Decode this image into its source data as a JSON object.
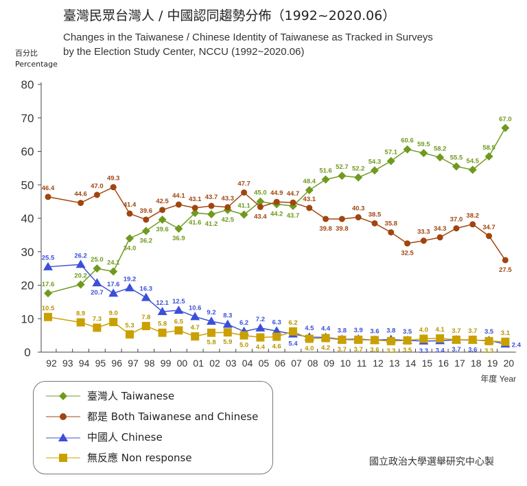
{
  "chart_data": {
    "type": "line",
    "title": "臺灣民眾台灣人 / 中國認同趨勢分佈（1992~2020.06）",
    "subtitle": [
      "Changes in the Taiwanese / Chinese Identity of Taiwanese as Tracked in Surveys",
      "by the Election Study Center, NCCU (1992~2020.06)"
    ],
    "ylabel": [
      "百分比",
      "Percentage"
    ],
    "xlabel": "年度 Year",
    "ylim": [
      0,
      80
    ],
    "yticks": [
      "0",
      "10",
      "20",
      "30",
      "40",
      "50",
      "60",
      "70",
      "80"
    ],
    "xticks": [
      "92",
      "93",
      "94",
      "95",
      "96",
      "97",
      "98",
      "99",
      "00",
      "01",
      "02",
      "03",
      "04",
      "05",
      "06",
      "07",
      "08",
      "09",
      "10",
      "11",
      "12",
      "13",
      "14",
      "15",
      "16",
      "17",
      "18",
      "19",
      "20"
    ],
    "x": [
      "92",
      "94",
      "95",
      "96",
      "97",
      "98",
      "99",
      "00",
      "01",
      "02",
      "03",
      "04",
      "05",
      "06",
      "07",
      "08",
      "09",
      "10",
      "11",
      "12",
      "13",
      "14",
      "15",
      "16",
      "17",
      "18",
      "19",
      "20"
    ],
    "series": [
      {
        "name": "臺灣人 Taiwanese",
        "color": "#6f9a1e",
        "marker": "diamond",
        "values": [
          17.6,
          20.2,
          25.0,
          24.1,
          34.0,
          36.2,
          39.6,
          36.9,
          41.6,
          41.2,
          42.5,
          41.1,
          45.0,
          44.2,
          43.7,
          48.4,
          51.6,
          52.7,
          52.2,
          54.3,
          57.1,
          60.6,
          59.5,
          58.2,
          55.5,
          54.5,
          58.5,
          67.0
        ]
      },
      {
        "name": "都是 Both Taiwanese and Chinese",
        "color": "#a0450f",
        "marker": "circle",
        "values": [
          46.4,
          44.6,
          47.0,
          49.3,
          41.4,
          39.6,
          42.5,
          44.1,
          43.1,
          43.7,
          43.3,
          47.7,
          43.4,
          44.9,
          44.7,
          43.1,
          39.8,
          39.8,
          40.3,
          38.5,
          35.8,
          32.5,
          33.3,
          34.3,
          37.0,
          38.2,
          34.7,
          27.5
        ]
      },
      {
        "name": "中國人 Chinese",
        "color": "#3b4fd8",
        "marker": "triangle",
        "values": [
          25.5,
          26.2,
          20.7,
          17.6,
          19.2,
          16.3,
          12.1,
          12.5,
          10.6,
          9.2,
          8.3,
          6.2,
          7.2,
          6.3,
          5.4,
          4.5,
          4.4,
          3.8,
          3.9,
          3.6,
          3.8,
          3.5,
          3.3,
          3.4,
          3.7,
          3.6,
          3.5,
          2.4
        ]
      },
      {
        "name": "無反應 Non response",
        "color": "#c9a000",
        "marker": "square",
        "values": [
          10.5,
          8.9,
          7.3,
          9.0,
          5.3,
          7.8,
          5.8,
          6.5,
          4.7,
          5.8,
          5.9,
          5.0,
          4.4,
          4.6,
          6.2,
          4.0,
          4.2,
          3.7,
          3.7,
          3.6,
          3.3,
          3.5,
          4.0,
          4.1,
          3.7,
          3.7,
          3.3,
          3.1
        ]
      }
    ],
    "legend": "bottom-left",
    "grid": false
  },
  "credit": "國立政治大學選舉研究中心製"
}
